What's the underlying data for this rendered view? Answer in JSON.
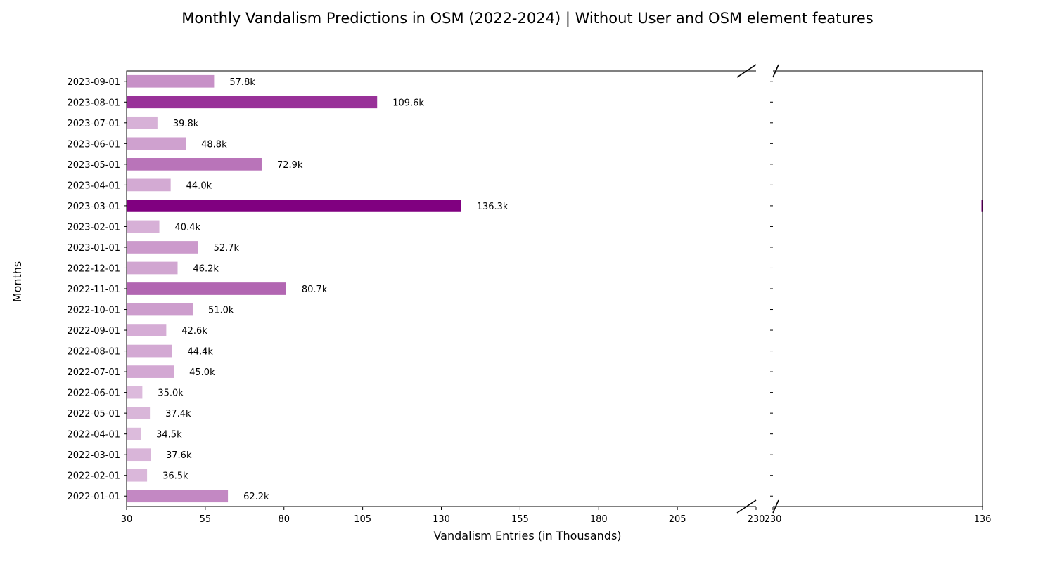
{
  "chart_data": {
    "type": "bar",
    "orientation": "horizontal",
    "title": "Monthly Vandalism Predictions in OSM (2022-2024) | Without User and OSM element features",
    "xlabel": "Vandalism Entries (in Thousands)",
    "ylabel": "Months",
    "categories": [
      "2022-01-01",
      "2022-02-01",
      "2022-03-01",
      "2022-04-01",
      "2022-05-01",
      "2022-06-01",
      "2022-07-01",
      "2022-08-01",
      "2022-09-01",
      "2022-10-01",
      "2022-11-01",
      "2022-12-01",
      "2023-01-01",
      "2023-02-01",
      "2023-03-01",
      "2023-04-01",
      "2023-05-01",
      "2023-06-01",
      "2023-07-01",
      "2023-08-01",
      "2023-09-01"
    ],
    "values": [
      62.2,
      36.5,
      37.6,
      34.5,
      37.4,
      35.0,
      45.0,
      44.4,
      42.6,
      51.0,
      80.7,
      46.2,
      52.7,
      40.4,
      136.3,
      44.0,
      72.9,
      48.8,
      39.8,
      109.6,
      57.8
    ],
    "value_labels": [
      "62.2k",
      "36.5k",
      "37.6k",
      "34.5k",
      "37.4k",
      "35.0k",
      "45.0k",
      "44.4k",
      "42.6k",
      "51.0k",
      "80.7k",
      "46.2k",
      "52.7k",
      "40.4k",
      "136.3k",
      "44.0k",
      "72.9k",
      "48.8k",
      "39.8k",
      "109.6k",
      "57.8k"
    ],
    "broken_axis": true,
    "left_panel": {
      "xlim": [
        30,
        230
      ],
      "xticks": [
        30,
        55,
        80,
        105,
        130,
        155,
        180,
        205,
        230
      ]
    },
    "right_panel": {
      "xlim": [
        230,
        136
      ],
      "xticks": [
        230,
        136
      ]
    },
    "color_light": "#dcbbdc",
    "color_dark": "#800080",
    "grid": false,
    "legend": "none"
  }
}
